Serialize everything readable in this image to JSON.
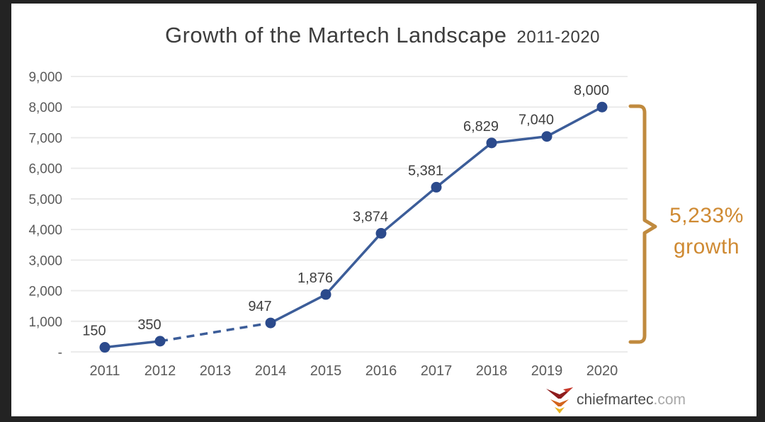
{
  "title": {
    "main": "Growth of the Martech Landscape",
    "range": "2011-2020"
  },
  "chart_data": {
    "type": "line",
    "categories": [
      "2011",
      "2012",
      "2013",
      "2014",
      "2015",
      "2016",
      "2017",
      "2018",
      "2019",
      "2020"
    ],
    "values": [
      150,
      350,
      null,
      947,
      1876,
      3874,
      5381,
      6829,
      7040,
      8000
    ],
    "point_labels": [
      "150",
      "350",
      "",
      "947",
      "1,876",
      "3,874",
      "5,381",
      "6,829",
      "7,040",
      "8,000"
    ],
    "dashed_between_categories": [
      "2012",
      "2014"
    ],
    "yticks": [
      {
        "label": "9,000",
        "value": 9000
      },
      {
        "label": "8,000",
        "value": 8000
      },
      {
        "label": "7,000",
        "value": 7000
      },
      {
        "label": "6,000",
        "value": 6000
      },
      {
        "label": "5,000",
        "value": 5000
      },
      {
        "label": "4,000",
        "value": 4000
      },
      {
        "label": "3,000",
        "value": 3000
      },
      {
        "label": "2,000",
        "value": 2000
      },
      {
        "label": "1,000",
        "value": 1000
      },
      {
        "label": "-",
        "value": 0
      }
    ],
    "ylim": [
      0,
      9000
    ],
    "grid": true,
    "title": "Growth of the Martech Landscape 2011-2020",
    "xlabel": "",
    "ylabel": "",
    "line_color": "#3c5d99",
    "marker_color": "#2b4a8c",
    "gridline_color": "#ebebeb",
    "axis_text_color": "#5a5a5a",
    "point_label_color": "#3f3f3f"
  },
  "annotation": {
    "growth_line1": "5,233%",
    "growth_line2": "growth",
    "color": "#cf8a33",
    "bracket_color": "#c08a3e"
  },
  "logo": {
    "text": "chiefmartec",
    "suffix": ".com"
  }
}
